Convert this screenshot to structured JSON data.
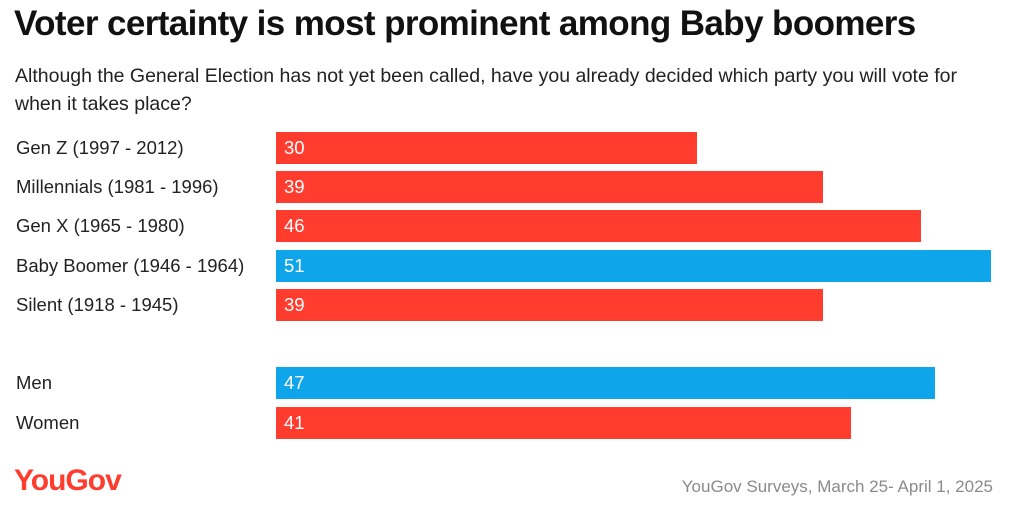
{
  "title": "Voter certainty is most prominent among Baby boomers",
  "subtitle": "Although the General Election has not yet been called, have you already decided which party you will vote for when it takes place?",
  "source": "YouGov Surveys, March 25- April 1, 2025",
  "brand": {
    "name": "YouGov",
    "color": "#ff3c2e"
  },
  "colors": {
    "default_bar": "#ff3c2e",
    "highlight_bar": "#0fa5eb"
  },
  "chart_data": {
    "type": "bar",
    "orientation": "horizontal",
    "title": "Voter certainty is most prominent among Baby boomers",
    "categories": [
      "Gen Z (1997 - 2012)",
      "Millennials (1981 - 1996)",
      "Gen X (1965 - 1980)",
      "Baby Boomer (1946 - 1964)",
      "Silent (1918 - 1945)",
      "Men",
      "Women"
    ],
    "values": [
      30,
      39,
      46,
      51,
      39,
      47,
      41
    ],
    "highlighted": [
      false,
      false,
      false,
      true,
      false,
      true,
      false
    ],
    "groups": [
      "generation",
      "generation",
      "generation",
      "generation",
      "generation",
      "gender",
      "gender"
    ],
    "xlim": [
      0,
      51
    ],
    "xlabel": "",
    "ylabel": "",
    "data_labels": true
  }
}
